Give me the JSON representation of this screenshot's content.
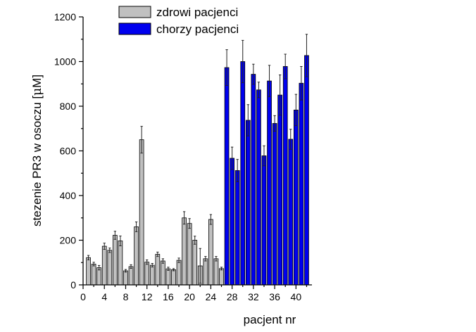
{
  "chart_data": {
    "type": "bar",
    "xlabel": "pacjent nr",
    "ylabel_prefix": "stezenie PR3 w osoczu [",
    "ylabel_mu": "μ",
    "ylabel_suffix": "M]",
    "xlim": [
      0,
      43
    ],
    "ylim": [
      0,
      1200
    ],
    "xticks": [
      0,
      4,
      8,
      12,
      16,
      20,
      24,
      28,
      32,
      36,
      40
    ],
    "yticks": [
      0,
      200,
      400,
      600,
      800,
      1000,
      1200
    ],
    "legend_position": "top-left",
    "series": [
      {
        "name": "zdrowi pacjenci",
        "color": "#c0c0c0",
        "x": [
          1,
          2,
          3,
          4,
          5,
          6,
          7,
          8,
          9,
          10,
          11,
          12,
          13,
          14,
          15,
          16,
          17,
          18,
          19,
          20,
          21,
          22,
          23,
          24,
          25,
          26
        ],
        "values": [
          122,
          93,
          77,
          173,
          155,
          222,
          197,
          63,
          82,
          260,
          650,
          102,
          88,
          137,
          107,
          72,
          68,
          110,
          300,
          275,
          200,
          85,
          117,
          293,
          117,
          73
        ],
        "errors": [
          10,
          8,
          10,
          14,
          10,
          18,
          22,
          6,
          8,
          22,
          60,
          10,
          8,
          10,
          10,
          7,
          5,
          10,
          28,
          22,
          18,
          78,
          10,
          22,
          10,
          6
        ]
      },
      {
        "name": "chorzy pacjenci",
        "color": "#0000ee",
        "x": [
          27,
          28,
          29,
          30,
          31,
          32,
          33,
          34,
          35,
          36,
          37,
          38,
          39,
          40,
          41,
          42
        ],
        "values": [
          973,
          567,
          512,
          1000,
          737,
          943,
          873,
          578,
          913,
          723,
          850,
          978,
          652,
          783,
          903,
          1027
        ],
        "errors": [
          80,
          50,
          50,
          95,
          70,
          45,
          35,
          45,
          70,
          35,
          90,
          55,
          45,
          70,
          75,
          95
        ]
      }
    ]
  }
}
